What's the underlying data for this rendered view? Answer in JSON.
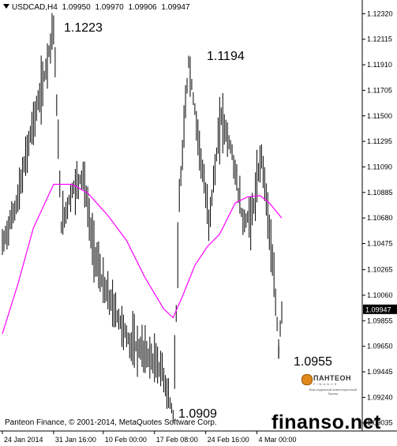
{
  "header": {
    "symbol": "USDCAD,H4",
    "open": "1.09950",
    "high": "1.09970",
    "low": "1.09906",
    "close": "1.09947"
  },
  "annotations": {
    "high1": "1.1223",
    "high2": "1.1194",
    "low1": "1.0909",
    "low2": "1.0955"
  },
  "footer": {
    "copyright": "Panteon Finance, © 2001-2014, MetaQuotes Software Corp.",
    "watermark": "finanso.net"
  },
  "logo": {
    "name": "ПАНТЕОН",
    "sub": "FINANCE",
    "tagline": "Ваш надежный инвестиционный брокер"
  },
  "colors": {
    "bars": "#000000",
    "moving_average": "#ff00ff",
    "current_price_tag": "#000000",
    "background": "#ffffff"
  },
  "chart_data": {
    "type": "line",
    "instrument": "USDCAD",
    "timeframe": "H4",
    "y_ticks": [
      "1.12320",
      "1.12115",
      "1.11910",
      "1.11705",
      "1.11500",
      "1.11295",
      "1.11090",
      "1.10885",
      "1.10680",
      "1.10475",
      "1.10265",
      "1.10060",
      "1.09855",
      "1.09650",
      "1.09445",
      "1.09240",
      "1.09035"
    ],
    "current_price": "1.09947",
    "x_ticks": [
      "24 Jan 2014",
      "31 Jan 16:00",
      "10 Feb 00:00",
      "17 Feb 08:00",
      "24 Feb 16:00",
      "4 Mar 00:00"
    ],
    "ylim": [
      1.0897,
      1.1243
    ],
    "price_path": [
      {
        "bar": 0,
        "value": 1.1046
      },
      {
        "bar": 10,
        "value": 1.1083
      },
      {
        "bar": 18,
        "value": 1.1135
      },
      {
        "bar": 26,
        "value": 1.1175
      },
      {
        "bar": 33,
        "value": 1.1223
      },
      {
        "bar": 38,
        "value": 1.1062
      },
      {
        "bar": 45,
        "value": 1.109
      },
      {
        "bar": 52,
        "value": 1.1103
      },
      {
        "bar": 58,
        "value": 1.1048
      },
      {
        "bar": 65,
        "value": 1.1013
      },
      {
        "bar": 74,
        "value": 1.099
      },
      {
        "bar": 82,
        "value": 1.0968
      },
      {
        "bar": 92,
        "value": 1.096
      },
      {
        "bar": 103,
        "value": 1.0945
      },
      {
        "bar": 110,
        "value": 1.0909
      },
      {
        "bar": 114,
        "value": 1.108
      },
      {
        "bar": 120,
        "value": 1.1194
      },
      {
        "bar": 126,
        "value": 1.1135
      },
      {
        "bar": 133,
        "value": 1.1065
      },
      {
        "bar": 141,
        "value": 1.115
      },
      {
        "bar": 148,
        "value": 1.112
      },
      {
        "bar": 155,
        "value": 1.1065
      },
      {
        "bar": 161,
        "value": 1.107
      },
      {
        "bar": 167,
        "value": 1.112
      },
      {
        "bar": 172,
        "value": 1.106
      },
      {
        "bar": 176,
        "value": 1.1
      },
      {
        "bar": 178,
        "value": 1.0965
      },
      {
        "bar": 180,
        "value": 1.0995
      }
    ],
    "moving_average": [
      {
        "bar": 0,
        "value": 1.0975
      },
      {
        "bar": 10,
        "value": 1.1015
      },
      {
        "bar": 20,
        "value": 1.106
      },
      {
        "bar": 33,
        "value": 1.1095
      },
      {
        "bar": 45,
        "value": 1.1095
      },
      {
        "bar": 55,
        "value": 1.1088
      },
      {
        "bar": 68,
        "value": 1.107
      },
      {
        "bar": 80,
        "value": 1.105
      },
      {
        "bar": 92,
        "value": 1.102
      },
      {
        "bar": 104,
        "value": 1.0995
      },
      {
        "bar": 110,
        "value": 1.0988
      },
      {
        "bar": 116,
        "value": 1.1005
      },
      {
        "bar": 124,
        "value": 1.103
      },
      {
        "bar": 132,
        "value": 1.1045
      },
      {
        "bar": 140,
        "value": 1.1055
      },
      {
        "bar": 150,
        "value": 1.108
      },
      {
        "bar": 158,
        "value": 1.1085
      },
      {
        "bar": 166,
        "value": 1.1086
      },
      {
        "bar": 172,
        "value": 1.108
      },
      {
        "bar": 180,
        "value": 1.1068
      }
    ],
    "xlim": [
      0,
      180
    ]
  }
}
